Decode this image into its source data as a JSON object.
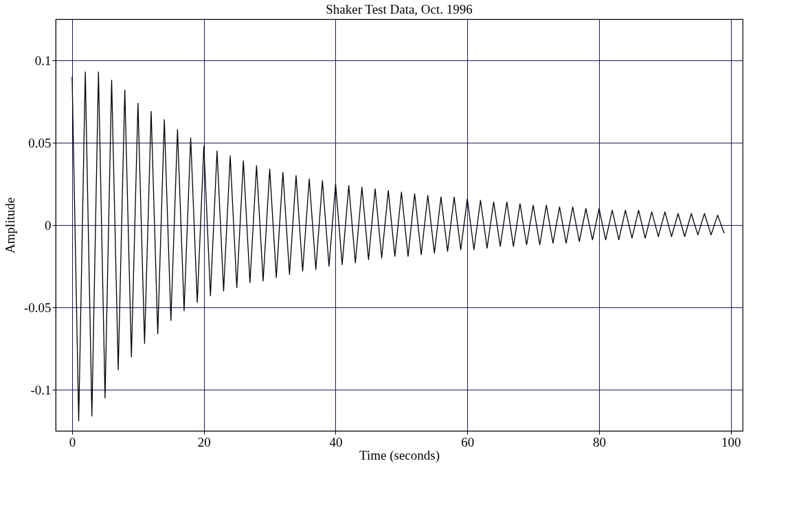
{
  "chart_data": {
    "type": "line",
    "title": "Shaker Test Data, Oct. 1996",
    "xlabel": "Time (seconds)",
    "ylabel": "Amplitude",
    "x": [
      0,
      1,
      2,
      3,
      4,
      5,
      6,
      7,
      8,
      9,
      10,
      11,
      12,
      13,
      14,
      15,
      16,
      17,
      18,
      19,
      20,
      21,
      22,
      23,
      24,
      25,
      26,
      27,
      28,
      29,
      30,
      31,
      32,
      33,
      34,
      35,
      36,
      37,
      38,
      39,
      40,
      41,
      42,
      43,
      44,
      45,
      46,
      47,
      48,
      49,
      50,
      51,
      52,
      53,
      54,
      55,
      56,
      57,
      58,
      59,
      60,
      61,
      62,
      63,
      64,
      65,
      66,
      67,
      68,
      69,
      70,
      71,
      72,
      73,
      74,
      75,
      76,
      77,
      78,
      79,
      80,
      81,
      82,
      83,
      84,
      85,
      86,
      87,
      88,
      89,
      90,
      91,
      92,
      93,
      94,
      95,
      96,
      97,
      98,
      99
    ],
    "series": [
      {
        "color": "#000000",
        "values": [
          0.09,
          -0.119,
          0.093,
          -0.116,
          0.093,
          -0.105,
          0.088,
          -0.088,
          0.082,
          -0.08,
          0.074,
          -0.072,
          0.069,
          -0.066,
          0.064,
          -0.058,
          0.058,
          -0.052,
          0.053,
          -0.047,
          0.048,
          -0.043,
          0.045,
          -0.04,
          0.042,
          -0.038,
          0.039,
          -0.035,
          0.036,
          -0.034,
          0.034,
          -0.032,
          0.032,
          -0.03,
          0.03,
          -0.028,
          0.028,
          -0.027,
          0.027,
          -0.025,
          0.025,
          -0.024,
          0.024,
          -0.023,
          0.023,
          -0.021,
          0.022,
          -0.02,
          0.021,
          -0.019,
          0.02,
          -0.019,
          0.019,
          -0.018,
          0.018,
          -0.017,
          0.017,
          -0.016,
          0.017,
          -0.015,
          0.016,
          -0.015,
          0.015,
          -0.014,
          0.014,
          -0.013,
          0.014,
          -0.013,
          0.013,
          -0.012,
          0.012,
          -0.012,
          0.012,
          -0.011,
          0.011,
          -0.011,
          0.011,
          -0.01,
          0.01,
          -0.009,
          0.01,
          -0.009,
          0.009,
          -0.009,
          0.009,
          -0.008,
          0.009,
          -0.008,
          0.008,
          -0.007,
          0.008,
          -0.007,
          0.007,
          -0.007,
          0.007,
          -0.006,
          0.007,
          -0.006,
          0.006,
          -0.005
        ]
      }
    ],
    "xlim": [
      -2.5,
      101.8
    ],
    "xticks": [
      0,
      20,
      40,
      60,
      80,
      100
    ],
    "ylim": [
      -0.125,
      0.125
    ],
    "yticks": [
      -0.1,
      -0.05,
      0,
      0.05,
      0.1
    ],
    "grid": true,
    "legend": false,
    "marker": "none",
    "line_style": "solid"
  }
}
